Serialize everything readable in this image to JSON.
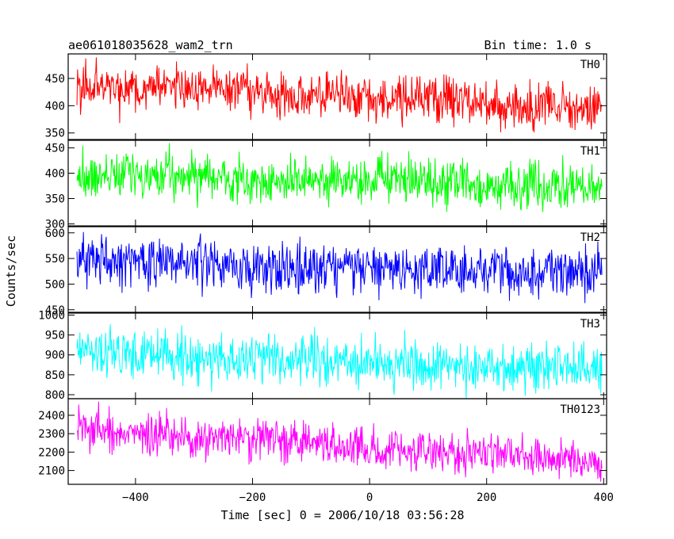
{
  "chart_data": {
    "type": "line",
    "title": "ae061018035628_wam2_trn",
    "bin_label": "Bin time: 1.0 s",
    "xlabel": "Time [sec] 0 = 2006/10/18 03:56:28",
    "ylabel": "Counts/sec",
    "xlim": [
      -515,
      405
    ],
    "x_ticks": [
      -400,
      -200,
      0,
      200,
      400
    ],
    "x_range": [
      -500,
      397
    ],
    "sampling": "1 s bins",
    "panels": [
      {
        "name": "TH0",
        "color": "#ff0000",
        "ylim": [
          338,
          495
        ],
        "y_ticks": [
          350,
          400,
          450
        ],
        "trend": {
          "start": 440,
          "end": 395
        },
        "noise_sd": 22
      },
      {
        "name": "TH1",
        "color": "#00ff00",
        "ylim": [
          296,
          465
        ],
        "y_ticks": [
          300,
          350,
          400,
          450
        ],
        "trend": {
          "start": 398,
          "end": 370
        },
        "noise_sd": 22
      },
      {
        "name": "TH2",
        "color": "#0000ff",
        "ylim": [
          445,
          612
        ],
        "y_ticks": [
          450,
          500,
          550,
          600
        ],
        "trend": {
          "start": 545,
          "end": 520
        },
        "noise_sd": 24
      },
      {
        "name": "TH3",
        "color": "#00ffff",
        "ylim": [
          790,
          1005
        ],
        "y_ticks": [
          800,
          850,
          900,
          950,
          1000
        ],
        "trend": {
          "start": 905,
          "end": 862
        },
        "noise_sd": 30
      },
      {
        "name": "TH0123",
        "color": "#ff00ff",
        "ylim": [
          2025,
          2490
        ],
        "y_ticks": [
          2100,
          2200,
          2300,
          2400
        ],
        "trend": {
          "start": 2320,
          "end": 2150
        },
        "noise_sd": 55
      }
    ]
  }
}
